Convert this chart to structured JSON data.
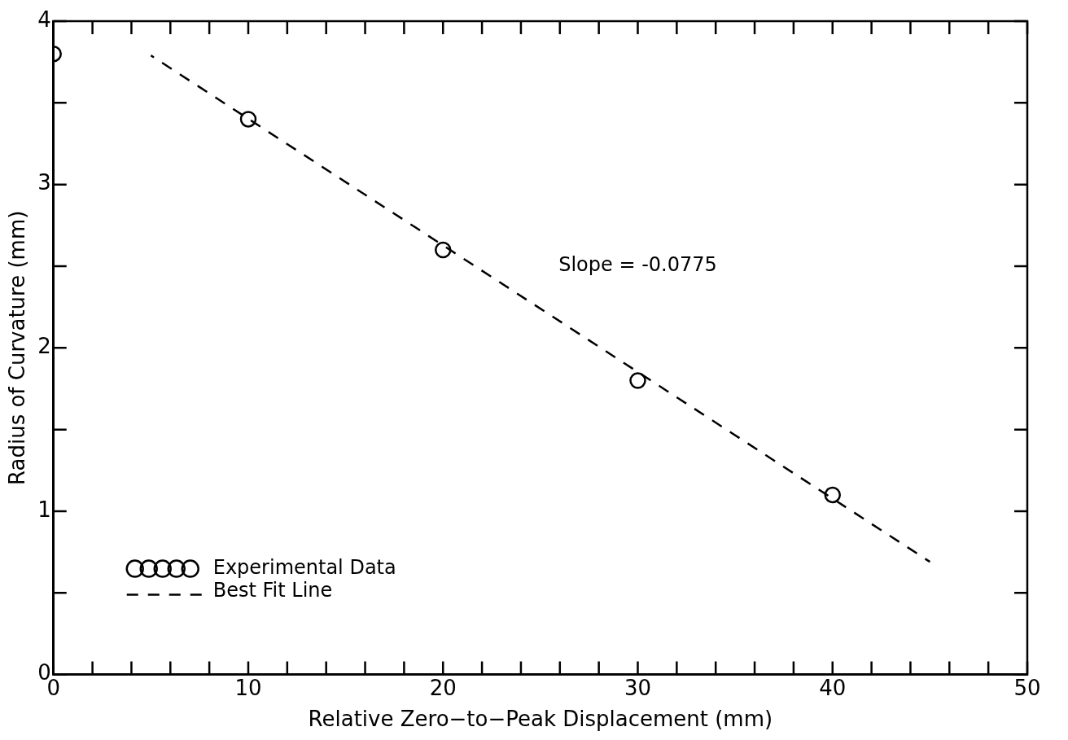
{
  "chart_data": {
    "type": "scatter",
    "xlabel": "Relative Zero−to−Peak Displacement (mm)",
    "ylabel": "Radius of Curvature (mm)",
    "xlim": [
      0,
      50
    ],
    "ylim": [
      0,
      4
    ],
    "xticks": [
      0,
      {
        "value": 2,
        "label": null
      },
      {
        "value": 4,
        "label": null
      },
      {
        "value": 6,
        "label": null
      },
      {
        "value": 8,
        "label": null
      },
      10,
      {
        "value": 12,
        "label": null
      },
      {
        "value": 14,
        "label": null
      },
      {
        "value": 16,
        "label": null
      },
      {
        "value": 18,
        "label": null
      },
      20,
      {
        "value": 22,
        "label": null
      },
      {
        "value": 24,
        "label": null
      },
      {
        "value": 26,
        "label": null
      },
      {
        "value": 28,
        "label": null
      },
      30,
      {
        "value": 32,
        "label": null
      },
      {
        "value": 34,
        "label": null
      },
      {
        "value": 36,
        "label": null
      },
      {
        "value": 38,
        "label": null
      },
      40,
      {
        "value": 42,
        "label": null
      },
      {
        "value": 44,
        "label": null
      },
      {
        "value": 46,
        "label": null
      },
      {
        "value": 48,
        "label": null
      },
      50
    ],
    "yticks": [
      0,
      {
        "value": 0.5,
        "label": null
      },
      1,
      {
        "value": 1.5,
        "label": null
      },
      2,
      {
        "value": 2.5,
        "label": null
      },
      3,
      {
        "value": 3.5,
        "label": null
      },
      4
    ],
    "grid": false,
    "legend": "bottom left",
    "series": [
      {
        "name": "Experimental Data",
        "type": "scatter",
        "color": "#000000",
        "marker": "circle",
        "x": [
          0,
          10,
          20,
          30,
          40
        ],
        "values": [
          3.8,
          3.4,
          2.6,
          1.8,
          1.1
        ]
      },
      {
        "name": "Best Fit Line",
        "type": "line",
        "color": "#000000",
        "line_style": "dashed",
        "marker": "none",
        "x": [
          5,
          45
        ],
        "values": [
          3.79,
          0.69
        ]
      }
    ],
    "annotations": [
      "Slope = -0.0775"
    ]
  }
}
